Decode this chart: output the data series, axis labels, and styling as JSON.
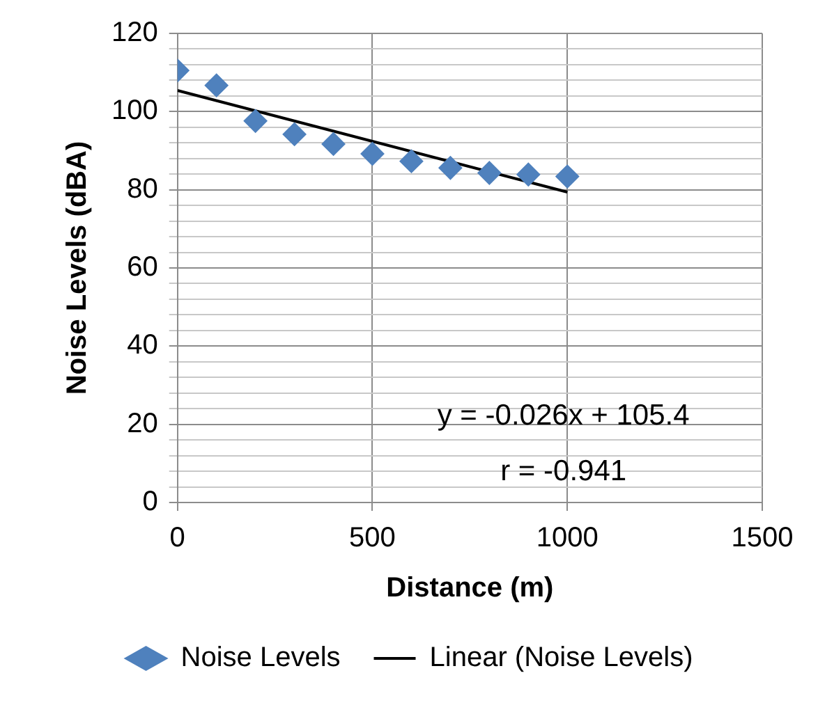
{
  "chart_data": {
    "type": "scatter",
    "xlabel": "Distance (m)",
    "ylabel": "Noise Levels (dBA)",
    "series": [
      {
        "name": "Noise Levels",
        "type": "scatter",
        "color": "#4f81bd",
        "marker": "diamond",
        "x": [
          0,
          100,
          200,
          300,
          400,
          500,
          600,
          700,
          800,
          900,
          1000
        ],
        "values": [
          110.5,
          106.7,
          97.6,
          94.2,
          91.7,
          89.2,
          87.3,
          85.6,
          84.3,
          83.9,
          83.4
        ]
      },
      {
        "name": "Linear (Noise Levels)",
        "type": "line",
        "color": "#000000",
        "marker": "none",
        "line_style": "solid",
        "x": [
          0,
          1000
        ],
        "values": [
          105.4,
          79.4
        ]
      }
    ],
    "xlim": [
      0,
      1500
    ],
    "xticks": [
      0,
      500,
      1000,
      1500
    ],
    "ylim": [
      0,
      120
    ],
    "yticks": [
      0,
      {
        "value": 4,
        "label": null
      },
      {
        "value": 8,
        "label": null
      },
      {
        "value": 12,
        "label": null
      },
      {
        "value": 16,
        "label": null
      },
      20,
      {
        "value": 24,
        "label": null
      },
      {
        "value": 28,
        "label": null
      },
      {
        "value": 32,
        "label": null
      },
      {
        "value": 36,
        "label": null
      },
      40,
      {
        "value": 44,
        "label": null
      },
      {
        "value": 48,
        "label": null
      },
      {
        "value": 52,
        "label": null
      },
      {
        "value": 56,
        "label": null
      },
      60,
      {
        "value": 64,
        "label": null
      },
      {
        "value": 68,
        "label": null
      },
      {
        "value": 72,
        "label": null
      },
      {
        "value": 76,
        "label": null
      },
      80,
      {
        "value": 84,
        "label": null
      },
      {
        "value": 88,
        "label": null
      },
      {
        "value": 92,
        "label": null
      },
      {
        "value": 96,
        "label": null
      },
      100,
      {
        "value": 104,
        "label": null
      },
      {
        "value": 108,
        "label": null
      },
      {
        "value": 112,
        "label": null
      },
      {
        "value": 116,
        "label": null
      },
      120
    ],
    "grid": true,
    "legend": "bottom",
    "annotations": [
      "y = -0.026x + 105.4",
      "r = -0.941"
    ]
  }
}
